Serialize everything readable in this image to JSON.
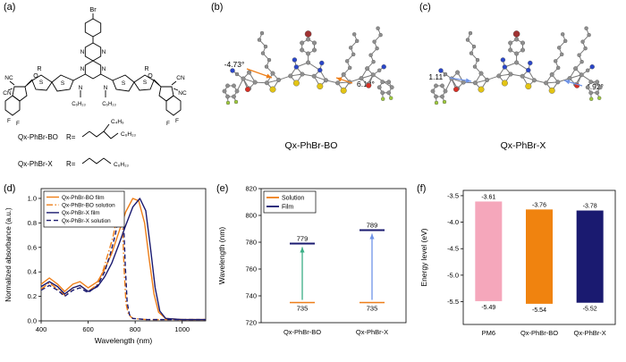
{
  "figure": {
    "a": {
      "panel_label": "(a)",
      "br": "Br",
      "n": [
        "N",
        "N",
        "N",
        "N",
        "N",
        "N"
      ],
      "s": [
        "S",
        "S",
        "S",
        "S"
      ],
      "r": [
        "R",
        "R"
      ],
      "nc_left": "NC",
      "cn_left": "CN",
      "o_left": "O",
      "f_left1": "F",
      "f_left2": "F",
      "cn_right": "CN",
      "nc_right": "NC",
      "o_right": "O",
      "f_right1": "F",
      "f_right2": "F",
      "hexyl_left": "C₆H₁₃",
      "hexyl_right": "C₆H₁₃",
      "r_rows": [
        {
          "name": "Qx-PhBr-BO",
          "eq": "R=",
          "chain1": "C₄H₉",
          "chain2": "C₆H₁₃"
        },
        {
          "name": "Qx-PhBr-X",
          "eq": "R=",
          "chain1": "C₆H₁₃",
          "chain2": ""
        }
      ]
    },
    "b": {
      "panel_label": "(b)",
      "angle_left": "-4.73°",
      "angle_right": "6.13°",
      "name": "Qx-PhBr-BO"
    },
    "c": {
      "panel_label": "(c)",
      "angle_left": "1.11°",
      "angle_right": "4.92°",
      "name": "Qx-PhBr-X"
    },
    "d": {
      "panel_label": "(d)"
    },
    "e": {
      "panel_label": "(e)"
    },
    "f": {
      "panel_label": "(f)"
    }
  },
  "colors": {
    "orange": "#EE7E18",
    "navy": "#1A1A70",
    "pink": "#F5A7BB",
    "green_arrow": "#3AAE85",
    "blue_arrow": "#6E93E8",
    "atom_gray": "#8f8f8f",
    "atom_sulfur": "#E3C414",
    "atom_nitrogen": "#2A46C8",
    "atom_oxygen": "#D93025",
    "atom_fluorine": "#9FCB3B",
    "atom_bromine": "#A03232"
  },
  "chart_data": [
    {
      "type": "line",
      "panel": "d",
      "title": "",
      "xlabel": "Wavelength (nm)",
      "ylabel": "Normalized absorbance (a.u.)",
      "xlim": [
        400,
        1100
      ],
      "ylim": [
        0,
        1.08
      ],
      "xticks": [
        400,
        600,
        800,
        1000
      ],
      "yticks": [
        0,
        0.2,
        0.4,
        0.6,
        0.8,
        1.0
      ],
      "ytick_labels": [
        "0.0",
        "0.2",
        "0.4",
        "0.6",
        "0.8",
        "1.0"
      ],
      "grid": false,
      "legend_position": "upper left",
      "series": [
        {
          "name": "Qx-PhBr-BO film",
          "color": "#EE7E18",
          "style": "solid",
          "points": [
            [
              400,
              0.3
            ],
            [
              435,
              0.35
            ],
            [
              470,
              0.3
            ],
            [
              500,
              0.24
            ],
            [
              535,
              0.3
            ],
            [
              565,
              0.32
            ],
            [
              600,
              0.27
            ],
            [
              640,
              0.32
            ],
            [
              670,
              0.42
            ],
            [
              700,
              0.55
            ],
            [
              730,
              0.72
            ],
            [
              760,
              0.89
            ],
            [
              790,
              1.0
            ],
            [
              815,
              0.98
            ],
            [
              840,
              0.8
            ],
            [
              860,
              0.5
            ],
            [
              880,
              0.22
            ],
            [
              900,
              0.07
            ],
            [
              930,
              0.02
            ],
            [
              1000,
              0.01
            ],
            [
              1100,
              0.01
            ]
          ]
        },
        {
          "name": "Qx-PhBr-BO solution",
          "color": "#EE7E18",
          "style": "dashdot",
          "points": [
            [
              400,
              0.26
            ],
            [
              435,
              0.31
            ],
            [
              470,
              0.26
            ],
            [
              500,
              0.21
            ],
            [
              535,
              0.27
            ],
            [
              565,
              0.29
            ],
            [
              600,
              0.24
            ],
            [
              640,
              0.3
            ],
            [
              665,
              0.42
            ],
            [
              685,
              0.55
            ],
            [
              705,
              0.68
            ],
            [
              720,
              0.82
            ],
            [
              730,
              0.93
            ],
            [
              737,
              1.0
            ],
            [
              746,
              0.8
            ],
            [
              753,
              0.42
            ],
            [
              761,
              0.14
            ],
            [
              772,
              0.05
            ],
            [
              790,
              0.02
            ],
            [
              850,
              0.01
            ],
            [
              1000,
              0.01
            ],
            [
              1100,
              0.01
            ]
          ]
        },
        {
          "name": "Qx-PhBr-X film",
          "color": "#1A1A70",
          "style": "solid",
          "points": [
            [
              400,
              0.28
            ],
            [
              435,
              0.32
            ],
            [
              470,
              0.28
            ],
            [
              500,
              0.22
            ],
            [
              535,
              0.27
            ],
            [
              565,
              0.29
            ],
            [
              600,
              0.24
            ],
            [
              640,
              0.28
            ],
            [
              670,
              0.36
            ],
            [
              700,
              0.47
            ],
            [
              730,
              0.62
            ],
            [
              760,
              0.78
            ],
            [
              790,
              0.93
            ],
            [
              820,
              1.0
            ],
            [
              845,
              0.9
            ],
            [
              865,
              0.6
            ],
            [
              885,
              0.27
            ],
            [
              905,
              0.08
            ],
            [
              930,
              0.02
            ],
            [
              1000,
              0.01
            ],
            [
              1100,
              0.01
            ]
          ]
        },
        {
          "name": "Qx-PhBr-X solution",
          "color": "#1A1A70",
          "style": "dashed",
          "points": [
            [
              400,
              0.25
            ],
            [
              435,
              0.29
            ],
            [
              470,
              0.25
            ],
            [
              500,
              0.2
            ],
            [
              535,
              0.25
            ],
            [
              565,
              0.27
            ],
            [
              600,
              0.23
            ],
            [
              640,
              0.29
            ],
            [
              670,
              0.4
            ],
            [
              695,
              0.55
            ],
            [
              715,
              0.7
            ],
            [
              730,
              0.85
            ],
            [
              741,
              1.0
            ],
            [
              750,
              0.85
            ],
            [
              758,
              0.45
            ],
            [
              766,
              0.15
            ],
            [
              776,
              0.05
            ],
            [
              790,
              0.02
            ],
            [
              850,
              0.01
            ],
            [
              1000,
              0.01
            ],
            [
              1100,
              0.01
            ]
          ]
        }
      ]
    },
    {
      "type": "levels",
      "panel": "e",
      "ylabel": "Wavelength (nm)",
      "ylim": [
        720,
        820
      ],
      "yticks": [
        720,
        740,
        760,
        780,
        800,
        820
      ],
      "categories": [
        "Qx-PhBr-BO",
        "Qx-PhBr-X"
      ],
      "legend": [
        {
          "label": "Solution",
          "color": "#EE7E18"
        },
        {
          "label": "Film",
          "color": "#1A1A70"
        }
      ],
      "groups": [
        {
          "category": "Qx-PhBr-BO",
          "solution_nm": 735,
          "film_nm": 779,
          "arrow_color": "#3AAE85"
        },
        {
          "category": "Qx-PhBr-X",
          "solution_nm": 735,
          "film_nm": 789,
          "arrow_color": "#6E93E8"
        }
      ]
    },
    {
      "type": "bar-range",
      "panel": "f",
      "ylabel": "Energy level (eV)",
      "yticks": [
        -3.5,
        -4.0,
        -4.5,
        -5.0,
        -5.5
      ],
      "ytick_labels": [
        "-3.5",
        "-4.0",
        "-4.5",
        "-5.0",
        "-5.5"
      ],
      "ylim_display": [
        -3.4,
        -5.93
      ],
      "categories": [
        "PM6",
        "Qx-PhBr-BO",
        "Qx-PhBr-X"
      ],
      "bars": [
        {
          "label": "PM6",
          "lumo": -3.61,
          "homo": -5.49,
          "color": "#F5A7BB"
        },
        {
          "label": "Qx-PhBr-BO",
          "lumo": -3.76,
          "homo": -5.54,
          "color": "#F0830F"
        },
        {
          "label": "Qx-PhBr-X",
          "lumo": -3.78,
          "homo": -5.52,
          "color": "#1A1A70"
        }
      ]
    }
  ]
}
